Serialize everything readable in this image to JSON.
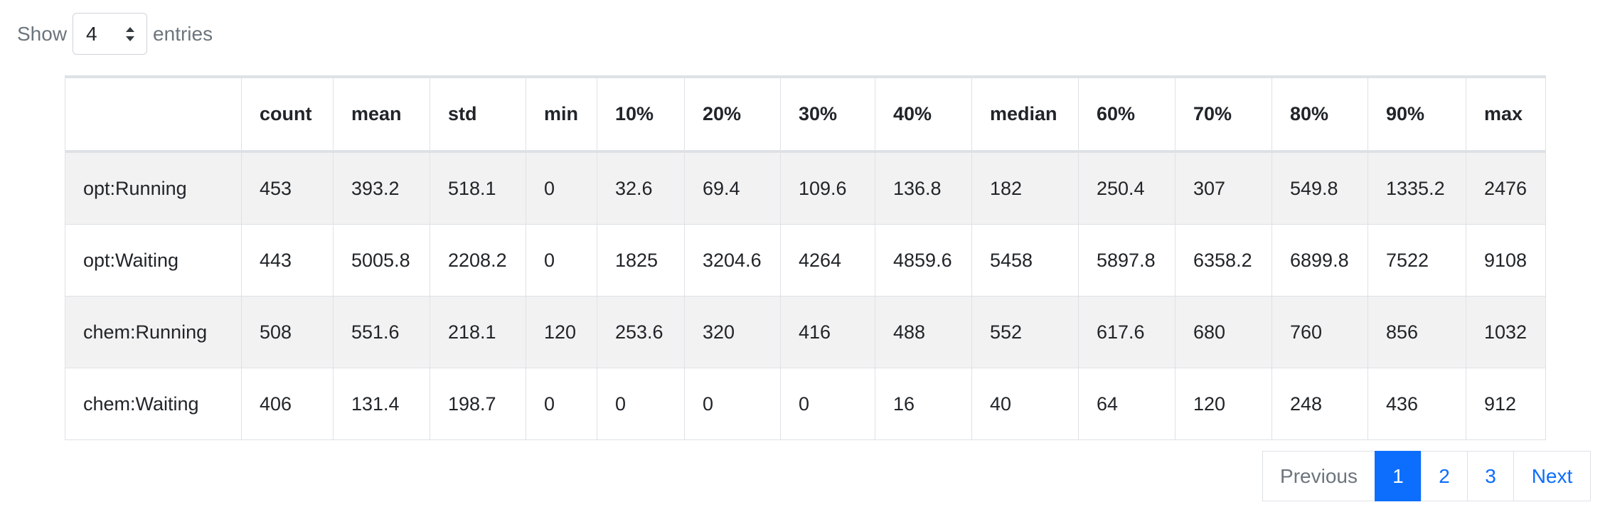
{
  "controls": {
    "show_label": "Show",
    "page_length": 4,
    "entries_label": "entries"
  },
  "table": {
    "columns": [
      "count",
      "mean",
      "std",
      "min",
      "10%",
      "20%",
      "30%",
      "40%",
      "median",
      "60%",
      "70%",
      "80%",
      "90%",
      "max"
    ],
    "rows": [
      {
        "label": "opt:Running",
        "values": [
          453,
          393.2,
          518.1,
          0,
          32.6,
          69.4,
          109.6,
          136.8,
          182,
          250.4,
          307,
          549.8,
          1335.2,
          2476
        ]
      },
      {
        "label": "opt:Waiting",
        "values": [
          443,
          5005.8,
          2208.2,
          0,
          1825,
          3204.6,
          4264,
          4859.6,
          5458,
          5897.8,
          6358.2,
          6899.8,
          7522,
          9108
        ]
      },
      {
        "label": "chem:Running",
        "values": [
          508,
          551.6,
          218.1,
          120,
          253.6,
          320,
          416,
          488,
          552,
          617.6,
          680,
          760,
          856,
          1032
        ]
      },
      {
        "label": "chem:Waiting",
        "values": [
          406,
          131.4,
          198.7,
          0,
          0,
          0,
          0,
          16,
          40,
          64,
          120,
          248,
          436,
          912
        ]
      }
    ]
  },
  "pagination": {
    "previous": "Previous",
    "pages": [
      1,
      2,
      3
    ],
    "current_page": 1,
    "next": "Next"
  }
}
